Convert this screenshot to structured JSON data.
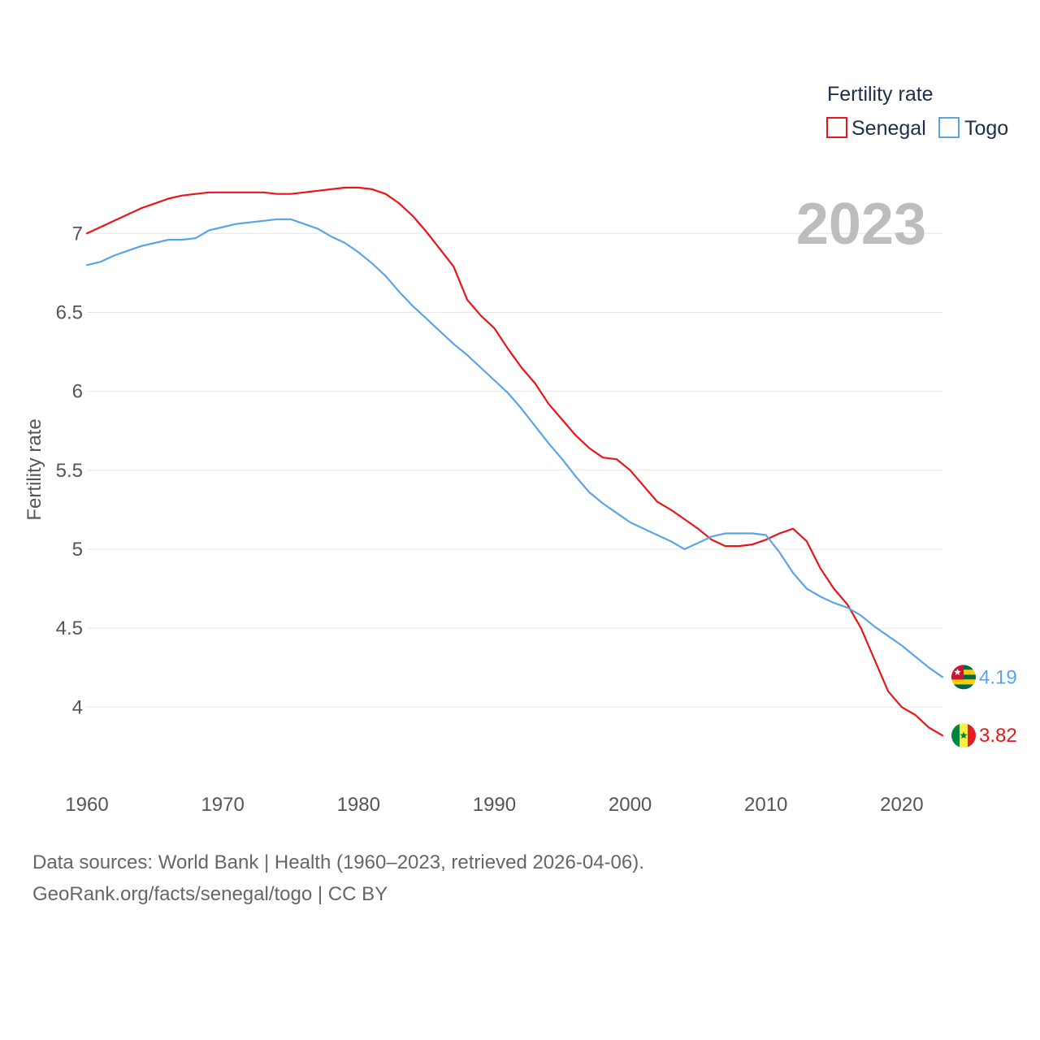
{
  "chart_data": {
    "type": "line",
    "title": "",
    "year_display": "2023",
    "ylabel": "Fertility rate",
    "xlabel": "",
    "xlim": [
      1960,
      2023
    ],
    "ylim": [
      3.6,
      7.3
    ],
    "x_ticks": [
      1960,
      1970,
      1980,
      1990,
      2000,
      2010,
      2020
    ],
    "y_ticks": [
      4,
      4.5,
      5,
      5.5,
      6,
      6.5,
      7
    ],
    "y_tick_labels": [
      "4",
      "4.5",
      "5",
      "5.5",
      "6",
      "6.5",
      "7"
    ],
    "legend_title": "Fertility rate",
    "legend_position": "top-right",
    "x": [
      1960,
      1961,
      1962,
      1963,
      1964,
      1965,
      1966,
      1967,
      1968,
      1969,
      1970,
      1971,
      1972,
      1973,
      1974,
      1975,
      1976,
      1977,
      1978,
      1979,
      1980,
      1981,
      1982,
      1983,
      1984,
      1985,
      1986,
      1987,
      1988,
      1989,
      1990,
      1991,
      1992,
      1993,
      1994,
      1995,
      1996,
      1997,
      1998,
      1999,
      2000,
      2001,
      2002,
      2003,
      2004,
      2005,
      2006,
      2007,
      2008,
      2009,
      2010,
      2011,
      2012,
      2013,
      2014,
      2015,
      2016,
      2017,
      2018,
      2019,
      2020,
      2021,
      2022,
      2023
    ],
    "series": [
      {
        "name": "Senegal",
        "color": "#e8161b",
        "end_label": "3.82",
        "values": [
          7.0,
          7.04,
          7.08,
          7.12,
          7.16,
          7.19,
          7.22,
          7.24,
          7.25,
          7.26,
          7.26,
          7.26,
          7.26,
          7.26,
          7.25,
          7.25,
          7.26,
          7.27,
          7.28,
          7.29,
          7.29,
          7.28,
          7.25,
          7.19,
          7.11,
          7.01,
          6.9,
          6.79,
          6.58,
          6.48,
          6.4,
          6.27,
          6.15,
          6.05,
          5.92,
          5.82,
          5.72,
          5.64,
          5.58,
          5.57,
          5.5,
          5.4,
          5.3,
          5.25,
          5.19,
          5.13,
          5.06,
          5.02,
          5.02,
          5.03,
          5.06,
          5.1,
          5.13,
          5.05,
          4.88,
          4.75,
          4.65,
          4.5,
          4.3,
          4.1,
          4.0,
          3.95,
          3.87,
          3.82
        ]
      },
      {
        "name": "Togo",
        "color": "#5ba4e6",
        "end_label": "4.19",
        "values": [
          6.8,
          6.82,
          6.86,
          6.89,
          6.92,
          6.94,
          6.96,
          6.96,
          6.97,
          7.02,
          7.04,
          7.06,
          7.07,
          7.08,
          7.09,
          7.09,
          7.06,
          7.03,
          6.98,
          6.94,
          6.88,
          6.81,
          6.73,
          6.63,
          6.54,
          6.46,
          6.38,
          6.3,
          6.23,
          6.15,
          6.07,
          5.99,
          5.89,
          5.78,
          5.67,
          5.57,
          5.46,
          5.36,
          5.29,
          5.23,
          5.17,
          5.13,
          5.09,
          5.05,
          5.0,
          5.04,
          5.08,
          5.1,
          5.1,
          5.1,
          5.09,
          4.98,
          4.85,
          4.75,
          4.7,
          4.66,
          4.63,
          4.58,
          4.51,
          4.45,
          4.39,
          4.32,
          4.25,
          4.19
        ]
      }
    ],
    "flag_colors": {
      "senegal": [
        "#00853f",
        "#fdef42",
        "#e31b23"
      ],
      "togo": [
        "#006a4e",
        "#ffce00",
        "#d21034"
      ]
    }
  },
  "footer": {
    "line1": "Data sources: World Bank | Health (1960–2023, retrieved 2026-04-06).",
    "line2": "GeoRank.org/facts/senegal/togo | CC BY"
  }
}
